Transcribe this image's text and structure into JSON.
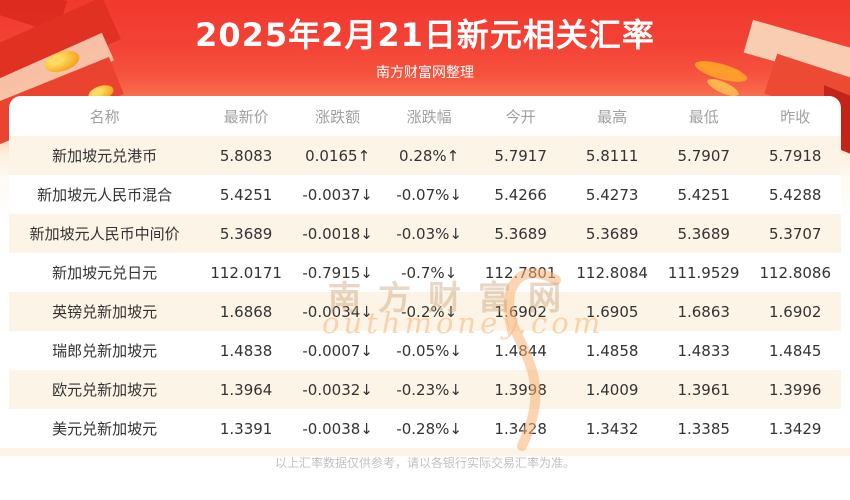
{
  "header": {
    "title": "2025年2月21日新元相关汇率",
    "subtitle": "南方财富网整理"
  },
  "chart_data": {
    "type": "table",
    "title": "2025年2月21日新元相关汇率",
    "source_note": "南方财富网整理",
    "columns": [
      "名称",
      "最新价",
      "涨跌额",
      "涨跌幅",
      "今开",
      "最高",
      "最低",
      "昨收"
    ],
    "rows": [
      {
        "cells": [
          "新加坡元兑港币",
          "5.8083",
          "0.0165↑",
          "0.28%↑",
          "5.7917",
          "5.8111",
          "5.7907",
          "5.7918"
        ],
        "trend": "up"
      },
      {
        "cells": [
          "新加坡元人民币混合",
          "5.4251",
          "-0.0037↓",
          "-0.07%↓",
          "5.4266",
          "5.4273",
          "5.4251",
          "5.4288"
        ],
        "trend": "down"
      },
      {
        "cells": [
          "新加坡元人民币中间价",
          "5.3689",
          "-0.0018↓",
          "-0.03%↓",
          "5.3689",
          "5.3689",
          "5.3689",
          "5.3707"
        ],
        "trend": "down"
      },
      {
        "cells": [
          "新加坡元兑日元",
          "112.0171",
          "-0.7915↓",
          "-0.7%↓",
          "112.7801",
          "112.8084",
          "111.9529",
          "112.8086"
        ],
        "trend": "down"
      },
      {
        "cells": [
          "英镑兑新加坡元",
          "1.6868",
          "-0.0034↓",
          "-0.2%↓",
          "1.6902",
          "1.6905",
          "1.6863",
          "1.6902"
        ],
        "trend": "down"
      },
      {
        "cells": [
          "瑞郎兑新加坡元",
          "1.4838",
          "-0.0007↓",
          "-0.05%↓",
          "1.4844",
          "1.4858",
          "1.4833",
          "1.4845"
        ],
        "trend": "down"
      },
      {
        "cells": [
          "欧元兑新加坡元",
          "1.3964",
          "-0.0032↓",
          "-0.23%↓",
          "1.3998",
          "1.4009",
          "1.3961",
          "1.3996"
        ],
        "trend": "down"
      },
      {
        "cells": [
          "美元兑新加坡元",
          "1.3391",
          "-0.0038↓",
          "-0.28%↓",
          "1.3428",
          "1.3432",
          "1.3385",
          "1.3429"
        ],
        "trend": "down"
      }
    ]
  },
  "watermark": {
    "cn": "南方财富网",
    "en": "outhmoney.com"
  },
  "footer": {
    "disclaimer": "以上汇率数据仅供参考，请以各银行实际交易汇率为准。"
  },
  "colors": {
    "up_red": "#de3c41",
    "down_green": "#2f9e5c",
    "banner_red": "#f2392e",
    "stripe_cream": "#fcf4e6",
    "header_gray": "#a0a0a0"
  }
}
